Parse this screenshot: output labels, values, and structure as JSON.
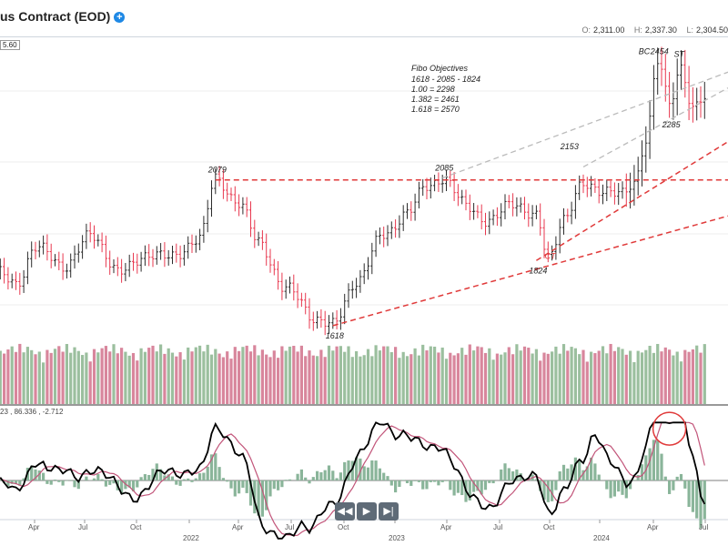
{
  "header": {
    "title": "us Contract (EOD)",
    "ohlc": [
      {
        "key": "O:",
        "value": "2,311.00"
      },
      {
        "key": "H:",
        "value": "2,337.30"
      },
      {
        "key": "L:",
        "value": "2,304.50"
      }
    ]
  },
  "price_tag": "5.60",
  "indicator_values": "23 , 86.336 , -2.712",
  "nav_buttons": [
    "◀◀",
    "▶",
    "▶|"
  ],
  "chart_data": {
    "type": "bar",
    "subtype": "ohlc-with-volume-and-macd",
    "x_months": [
      "Apr",
      "Jul",
      "Oct",
      "2022",
      "Apr",
      "Jul",
      "Oct",
      "2023",
      "Apr",
      "Jul",
      "Oct",
      "2024",
      "Apr",
      "Jul"
    ],
    "price_swings": [
      {
        "i": 0,
        "v": 1790
      },
      {
        "i": 5,
        "v": 1745
      },
      {
        "i": 10,
        "v": 1870
      },
      {
        "i": 17,
        "v": 1805
      },
      {
        "i": 24,
        "v": 1900
      },
      {
        "i": 32,
        "v": 1790
      },
      {
        "i": 40,
        "v": 1850
      },
      {
        "i": 45,
        "v": 1830
      },
      {
        "i": 52,
        "v": 1900
      },
      {
        "i": 56,
        "v": 2079
      },
      {
        "i": 62,
        "v": 2010
      },
      {
        "i": 67,
        "v": 1880
      },
      {
        "i": 74,
        "v": 1735
      },
      {
        "i": 82,
        "v": 1640
      },
      {
        "i": 86,
        "v": 1618
      },
      {
        "i": 92,
        "v": 1760
      },
      {
        "i": 99,
        "v": 1905
      },
      {
        "i": 105,
        "v": 1975
      },
      {
        "i": 110,
        "v": 2060
      },
      {
        "i": 114,
        "v": 2085
      },
      {
        "i": 120,
        "v": 2000
      },
      {
        "i": 126,
        "v": 1945
      },
      {
        "i": 132,
        "v": 2010
      },
      {
        "i": 138,
        "v": 1960
      },
      {
        "i": 141,
        "v": 1830
      },
      {
        "i": 145,
        "v": 1960
      },
      {
        "i": 150,
        "v": 2060
      },
      {
        "i": 155,
        "v": 2050
      },
      {
        "i": 160,
        "v": 2030
      },
      {
        "i": 163,
        "v": 2070
      },
      {
        "i": 166,
        "v": 2210
      },
      {
        "i": 169,
        "v": 2454
      },
      {
        "i": 172,
        "v": 2320
      },
      {
        "i": 175,
        "v": 2440
      },
      {
        "i": 178,
        "v": 2300
      },
      {
        "i": 180,
        "v": 2330
      }
    ],
    "volume_range": [
      150000,
      340000
    ],
    "price_ylim": [
      1560,
      2510
    ],
    "annotations": {
      "fibo_title": "Fibo Objectives",
      "fibo_lines": [
        "1618 - 2085 - 1824",
        "1.00 = 2298",
        "1.382 = 2461",
        "1.618 = 2570"
      ],
      "labels": [
        {
          "text": "2079",
          "i": 56,
          "v": 2079
        },
        {
          "text": "2085",
          "i": 114,
          "v": 2085
        },
        {
          "text": "1618",
          "i": 86,
          "v": 1618
        },
        {
          "text": "1824",
          "i": 138,
          "v": 1824
        },
        {
          "text": "2153",
          "i": 146,
          "v": 2153
        },
        {
          "text": "CT",
          "i": 142,
          "v": 1870
        },
        {
          "text": "2454",
          "i": 169,
          "v": 2454
        },
        {
          "text": "BC",
          "i": 166,
          "v": 2454
        },
        {
          "text": "ST",
          "i": 175,
          "v": 2445
        },
        {
          "text": "2285",
          "i": 172,
          "v": 2285
        }
      ]
    },
    "lines": {
      "resistance": 2079,
      "colors": {
        "up": "#2b2b2b",
        "down": "#e8384f",
        "dashed_red": "#e03a3a",
        "dashed_grey": "#bbbbbb",
        "vol_up": "#9bbf9e",
        "vol_down": "#d8869c",
        "macd": "#000000",
        "signal": "#c2557a",
        "hist": "#8ab59a"
      }
    }
  }
}
